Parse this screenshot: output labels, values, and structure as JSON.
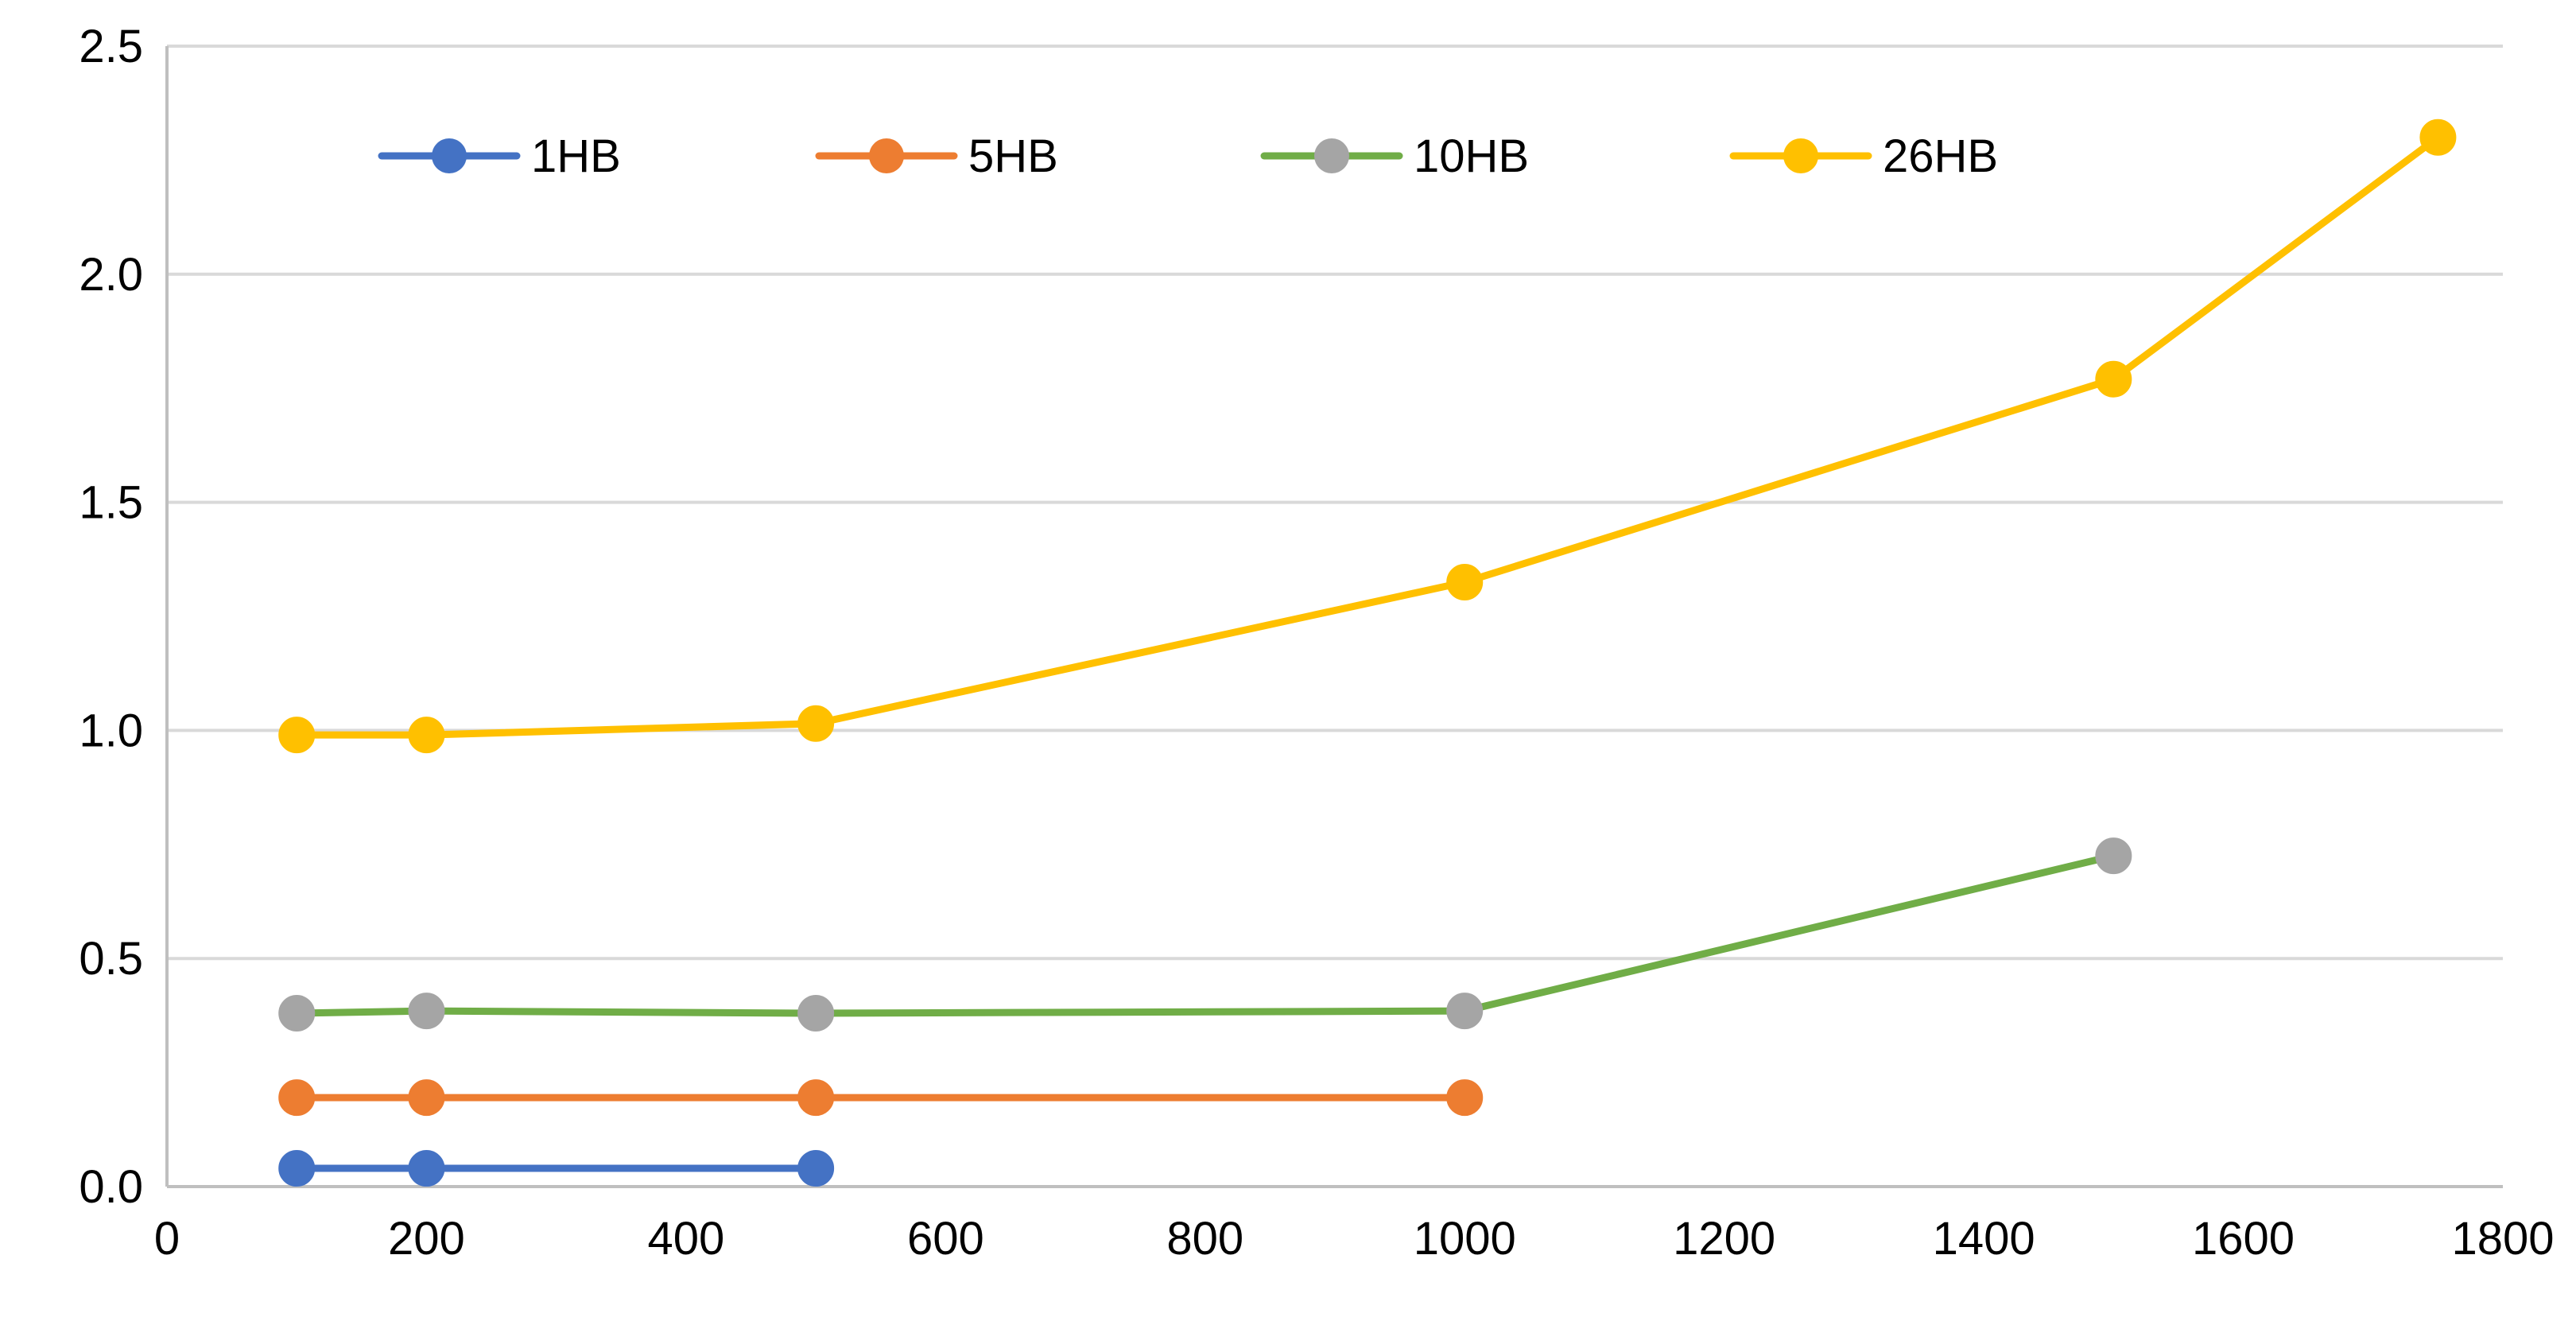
{
  "chart_data": {
    "type": "line",
    "title": "",
    "xlabel": "",
    "ylabel": "",
    "xlim": [
      0,
      1800
    ],
    "ylim": [
      0,
      2.5
    ],
    "x_ticks": [
      "0",
      "200",
      "400",
      "600",
      "800",
      "1000",
      "1200",
      "1400",
      "1600",
      "1800"
    ],
    "y_ticks": [
      "0.0",
      "0.5",
      "1.0",
      "1.5",
      "2.0",
      "2.5"
    ],
    "x_tick_values": [
      0,
      200,
      400,
      600,
      800,
      1000,
      1200,
      1400,
      1600,
      1800
    ],
    "y_tick_values": [
      0,
      0.5,
      1.0,
      1.5,
      2.0,
      2.5
    ],
    "grid": "horizontal",
    "legend_position": "top",
    "series": [
      {
        "name": "1HB",
        "line_color": "#4472C4",
        "marker_color": "#4472C4",
        "x": [
          100,
          200,
          500
        ],
        "y": [
          0.04,
          0.04,
          0.04
        ]
      },
      {
        "name": "5HB",
        "line_color": "#ED7D31",
        "marker_color": "#ED7D31",
        "x": [
          100,
          200,
          500,
          1000
        ],
        "y": [
          0.195,
          0.195,
          0.195,
          0.195
        ]
      },
      {
        "name": "10HB",
        "line_color": "#70AD47",
        "marker_color": "#A5A5A5",
        "x": [
          100,
          200,
          500,
          1000,
          1500
        ],
        "y": [
          0.38,
          0.385,
          0.38,
          0.385,
          0.725
        ]
      },
      {
        "name": "26HB",
        "line_color": "#FFC000",
        "marker_color": "#FFC000",
        "x": [
          100,
          200,
          500,
          1000,
          1500,
          1750
        ],
        "y": [
          0.99,
          0.99,
          1.015,
          1.325,
          1.77,
          2.3
        ]
      }
    ]
  }
}
